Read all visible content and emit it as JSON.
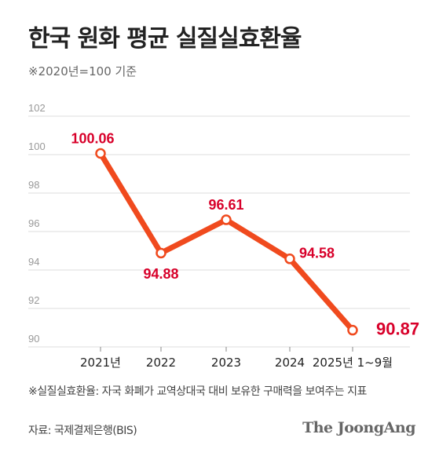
{
  "header": {
    "title": "한국 원화 평균 실질실효환율",
    "subtitle": "※2020년=100 기준"
  },
  "footer": {
    "footnote": "※실질실효환율: 자국 화폐가 교역상대국 대비 보유한 구매력을 보여주는 지표",
    "source": "자료: 국제결제은행(BIS)",
    "brand": "The JoongAng"
  },
  "colors": {
    "line": "#f04a1e",
    "label": "#d8002a",
    "grid": "#dddddd",
    "axis_text": "#999999"
  },
  "chart_data": {
    "type": "line",
    "categories": [
      "2021년",
      "2022",
      "2023",
      "2024",
      "2025년 1~9월"
    ],
    "values": [
      100.06,
      94.88,
      96.61,
      94.58,
      90.87
    ],
    "data_labels": [
      "100.06",
      "94.88",
      "96.61",
      "94.58",
      "90.87"
    ],
    "title": "한국 원화 평균 실질실효환율",
    "subtitle": "※2020년=100 기준",
    "ylim": [
      90,
      102
    ],
    "yticks": [
      90,
      92,
      94,
      96,
      98,
      100,
      102
    ],
    "grid": true
  }
}
